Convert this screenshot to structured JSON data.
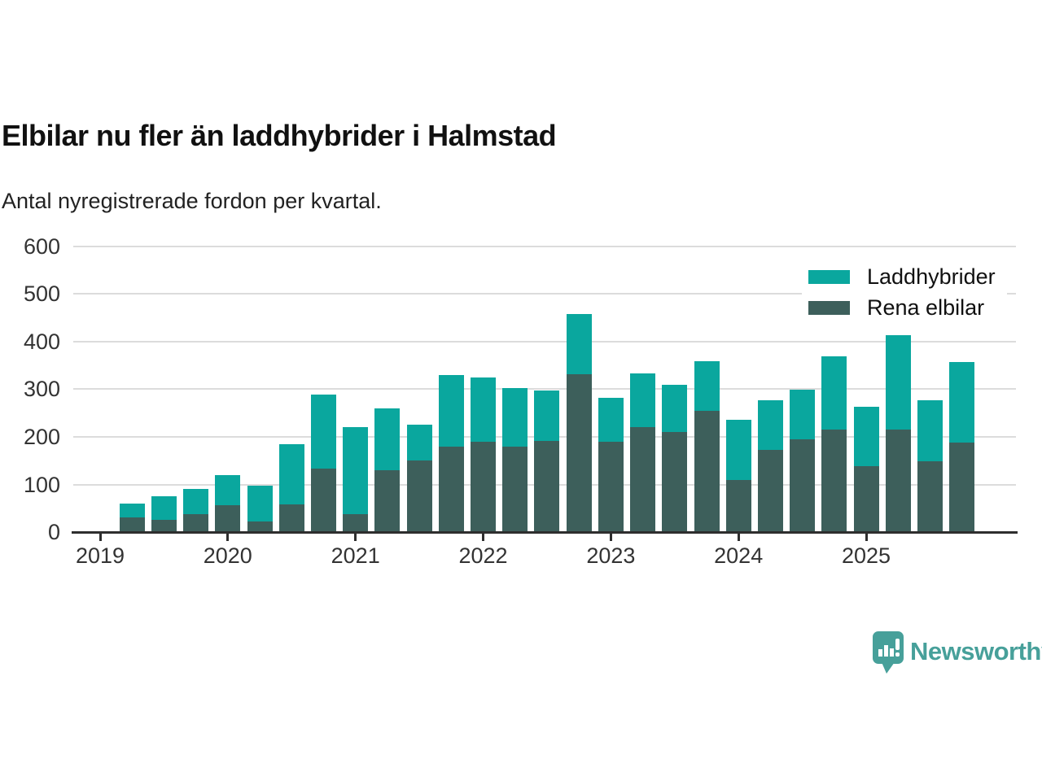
{
  "header": {
    "title": "Elbilar nu fler än laddhybrider i Halmstad",
    "subtitle": "Antal nyregistrerade fordon per kvartal."
  },
  "chart_data": {
    "type": "bar",
    "stacked": true,
    "title": "Elbilar nu fler än laddhybrider i Halmstad",
    "subtitle": "Antal nyregistrerade fordon per kvartal.",
    "categories": [
      "2019 Q2",
      "2019 Q3",
      "2019 Q4",
      "2020 Q1",
      "2020 Q2",
      "2020 Q3",
      "2020 Q4",
      "2021 Q1",
      "2021 Q2",
      "2021 Q3",
      "2021 Q4",
      "2022 Q1",
      "2022 Q2",
      "2022 Q3",
      "2022 Q4",
      "2023 Q1",
      "2023 Q2",
      "2023 Q3",
      "2023 Q4",
      "2024 Q1",
      "2024 Q2",
      "2024 Q3",
      "2024 Q4",
      "2025 Q1",
      "2025 Q2",
      "2025 Q3",
      "2025 Q4"
    ],
    "series": [
      {
        "name": "Rena elbilar",
        "color": "#3d5f5b",
        "values": [
          30,
          26,
          38,
          56,
          22,
          58,
          133,
          38,
          130,
          150,
          180,
          190,
          180,
          192,
          331,
          189,
          221,
          210,
          255,
          110,
          172,
          194,
          216,
          138,
          215,
          149,
          188
        ]
      },
      {
        "name": "Laddhybrider",
        "color": "#0aa79e",
        "values": [
          30,
          50,
          53,
          64,
          75,
          126,
          156,
          182,
          130,
          76,
          150,
          135,
          122,
          106,
          127,
          93,
          112,
          99,
          103,
          126,
          104,
          105,
          153,
          125,
          198,
          128,
          169
        ]
      }
    ],
    "totals": [
      60,
      76,
      91,
      120,
      97,
      184,
      289,
      220,
      260,
      226,
      330,
      325,
      302,
      298,
      458,
      282,
      333,
      309,
      358,
      236,
      276,
      299,
      369,
      263,
      413,
      277,
      357
    ],
    "ylim": [
      0,
      600
    ],
    "y_ticks": [
      0,
      100,
      200,
      300,
      400,
      500,
      600
    ],
    "x_ticks": [
      {
        "label": "2019",
        "quarter_offset": 0
      },
      {
        "label": "2020",
        "quarter_offset": 4
      },
      {
        "label": "2021",
        "quarter_offset": 8
      },
      {
        "label": "2022",
        "quarter_offset": 12
      },
      {
        "label": "2023",
        "quarter_offset": 16
      },
      {
        "label": "2024",
        "quarter_offset": 20
      },
      {
        "label": "2025",
        "quarter_offset": 24
      }
    ],
    "first_point_quarter_offset": 1,
    "grid": "horizontal",
    "legend_position": "top-right",
    "legend": [
      "Laddhybrider",
      "Rena elbilar"
    ]
  },
  "branding": {
    "logo_text": "Newsworthy",
    "logo_color": "#47a09a",
    "logo_icon": "newsworthy-speech-bubble-chart-icon"
  }
}
